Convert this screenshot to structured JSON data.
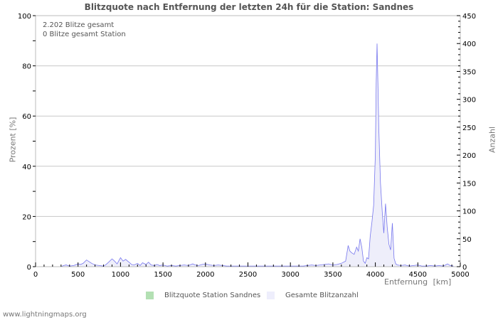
{
  "title": "Blitzquote nach Entfernung der letzten 24h für die Station: Sandnes",
  "info": {
    "line1": "2.202 Blitze gesamt",
    "line2": "0 Blitze gesamt Station"
  },
  "axes": {
    "xlabel": "Entfernung   [km]",
    "ylabel_left": "Prozent   [%]",
    "ylabel_right": "Anzahl"
  },
  "legend": {
    "items": [
      {
        "label": "Blitzquote Station Sandnes",
        "color": "#b3e0b3"
      },
      {
        "label": "Gesamte Blitzanzahl",
        "color": "#eeeefc"
      }
    ]
  },
  "footer": "www.lightningmaps.org",
  "colors": {
    "line": "#7777ee",
    "fill": "#eeeefa",
    "grid": "#c8c8c8",
    "axis": "#bbbbbb"
  },
  "chart_data": {
    "type": "area",
    "title": "Blitzquote nach Entfernung der letzten 24h für die Station: Sandnes",
    "xlabel": "Entfernung [km]",
    "ylabel": "Prozent [%]",
    "y2label": "Anzahl",
    "xlim": [
      0,
      5000
    ],
    "ylim": [
      0,
      100
    ],
    "y2lim": [
      0,
      450
    ],
    "x_ticks": [
      0,
      500,
      1000,
      1500,
      2000,
      2500,
      3000,
      3500,
      4000,
      4500,
      5000
    ],
    "y_ticks": [
      0,
      20,
      40,
      60,
      80,
      100
    ],
    "y2_ticks": [
      0,
      50,
      100,
      150,
      200,
      250,
      300,
      350,
      400,
      450
    ],
    "grid": true,
    "legend_position": "bottom",
    "series": [
      {
        "name": "Blitzquote Station Sandnes",
        "axis": "left",
        "x": [],
        "values": []
      },
      {
        "name": "Gesamte Blitzanzahl",
        "axis": "right",
        "x": [
          300,
          330,
          360,
          400,
          450,
          500,
          530,
          560,
          600,
          630,
          660,
          700,
          750,
          800,
          830,
          860,
          900,
          930,
          960,
          1000,
          1030,
          1060,
          1100,
          1130,
          1160,
          1200,
          1230,
          1260,
          1300,
          1330,
          1360,
          1400,
          1430,
          1460,
          1500,
          1550,
          1600,
          1650,
          1700,
          1750,
          1800,
          1850,
          1880,
          1920,
          1960,
          2000,
          2050,
          2100,
          2150,
          2200,
          2250,
          2300,
          3150,
          3200,
          3250,
          3300,
          3350,
          3400,
          3450,
          3500,
          3550,
          3600,
          3650,
          3680,
          3700,
          3720,
          3750,
          3780,
          3800,
          3820,
          3840,
          3860,
          3880,
          3900,
          3920,
          3940,
          3960,
          3980,
          4000,
          4010,
          4020,
          4030,
          4040,
          4050,
          4060,
          4080,
          4100,
          4120,
          4140,
          4160,
          4180,
          4200,
          4220,
          4240,
          4260,
          4300,
          4350,
          4400,
          4450,
          4500,
          4550,
          4600,
          4650,
          4700,
          4750,
          4800,
          4850,
          4880,
          4920
        ],
        "values": [
          0,
          2,
          3,
          1,
          2,
          5,
          4,
          6,
          12,
          9,
          6,
          3,
          2,
          1,
          4,
          8,
          14,
          10,
          5,
          16,
          10,
          13,
          8,
          4,
          3,
          6,
          2,
          7,
          4,
          8,
          3,
          2,
          4,
          2,
          3,
          1,
          2,
          1,
          2,
          3,
          2,
          5,
          3,
          2,
          4,
          5,
          3,
          2,
          3,
          2,
          1,
          1,
          1,
          2,
          3,
          2,
          3,
          4,
          5,
          3,
          4,
          6,
          10,
          38,
          28,
          25,
          22,
          35,
          28,
          50,
          35,
          10,
          6,
          16,
          14,
          55,
          80,
          110,
          200,
          330,
          400,
          330,
          250,
          200,
          150,
          100,
          60,
          113,
          70,
          40,
          30,
          78,
          15,
          5,
          3,
          2,
          3,
          1,
          2,
          3,
          1,
          1,
          2,
          1,
          2,
          1,
          5,
          2,
          1
        ]
      }
    ],
    "annotations": [
      "2.202 Blitze gesamt",
      "0 Blitze gesamt Station"
    ]
  }
}
